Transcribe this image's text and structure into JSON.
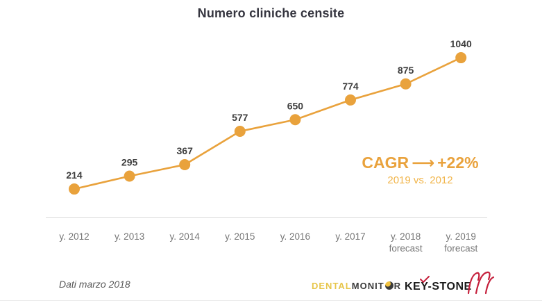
{
  "chart_data": {
    "type": "line",
    "title": "Numero cliniche censite",
    "categories": [
      [
        "y. 2012"
      ],
      [
        "y. 2013"
      ],
      [
        "y. 2014"
      ],
      [
        "y. 2015"
      ],
      [
        "y. 2016"
      ],
      [
        "y. 2017"
      ],
      [
        "y. 2018",
        "forecast"
      ],
      [
        "y. 2019",
        "forecast"
      ]
    ],
    "values": [
      214,
      295,
      367,
      577,
      650,
      774,
      875,
      1040
    ],
    "xlabel": "",
    "ylabel": "",
    "ylim": [
      0,
      1200
    ],
    "y_axis_visible": false,
    "grid": false,
    "legend": false,
    "colors": {
      "line": "#E9A23C",
      "marker": "#E9A23C",
      "value_label": "#3D3D3D",
      "tick": "#767676",
      "axis_line": "#DADADA"
    }
  },
  "annotation": {
    "label": "CAGR",
    "arrow": "⟶",
    "value": "+22%",
    "subtitle": "2019 vs. 2012",
    "color": "#E9A23C",
    "subtitle_color": "#F1B54A"
  },
  "footer": {
    "note": "Dati marzo 2018",
    "dental_monitor": {
      "part1": "DENTAL",
      "part2_prefix": "MONIT",
      "part2_suffix": "R",
      "dental_color": "#E7C64B",
      "monitor_color": "#3B3B3B"
    },
    "keystone": {
      "name": "KEY-STONE",
      "accent_color": "#C5203C"
    }
  }
}
